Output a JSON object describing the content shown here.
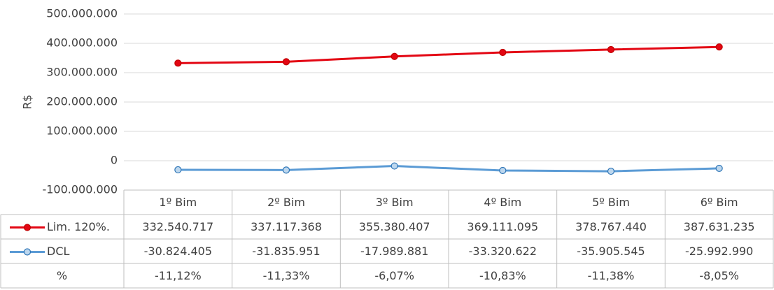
{
  "chart_data": {
    "type": "line",
    "y_axis_label": "R$",
    "categories": [
      "1º Bim",
      "2º Bim",
      "3º Bim",
      "4º Bim",
      "5º Bim",
      "6º Bim"
    ],
    "series": [
      {
        "name": "Lim. 120%.",
        "color": "#e30613",
        "values": [
          332540717,
          337117368,
          355380407,
          369111095,
          378767440,
          387631235
        ],
        "value_labels": [
          "332.540.717",
          "337.117.368",
          "355.380.407",
          "369.111.095",
          "378.767.440",
          "387.631.235"
        ]
      },
      {
        "name": "DCL",
        "color": "#5b9bd5",
        "values": [
          -30824405,
          -31835951,
          -17989881,
          -33320622,
          -35905545,
          -25992990
        ],
        "value_labels": [
          "-30.824.405",
          "-31.835.951",
          "-17.989.881",
          "-33.320.622",
          "-35.905.545",
          "-25.992.990"
        ]
      }
    ],
    "table_row": {
      "name": "%",
      "values": [
        -11.12,
        -11.33,
        -6.07,
        -10.83,
        -11.38,
        -8.05
      ],
      "value_labels": [
        "-11,12%",
        "-11,33%",
        "-6,07%",
        "-10,83%",
        "-11,38%",
        "-8,05%"
      ]
    },
    "ylim": [
      -100000000,
      500000000
    ],
    "yticks": [
      {
        "value": -100000000,
        "label": "-100.000.000"
      },
      0,
      {
        "value": 100000000,
        "label": "100.000.000"
      },
      {
        "value": 200000000,
        "label": "200.000.000"
      },
      {
        "value": 300000000,
        "label": "300.000.000"
      },
      {
        "value": 400000000,
        "label": "400.000.000"
      },
      {
        "value": 500000000,
        "label": "500.000.000"
      }
    ],
    "grid": true
  }
}
